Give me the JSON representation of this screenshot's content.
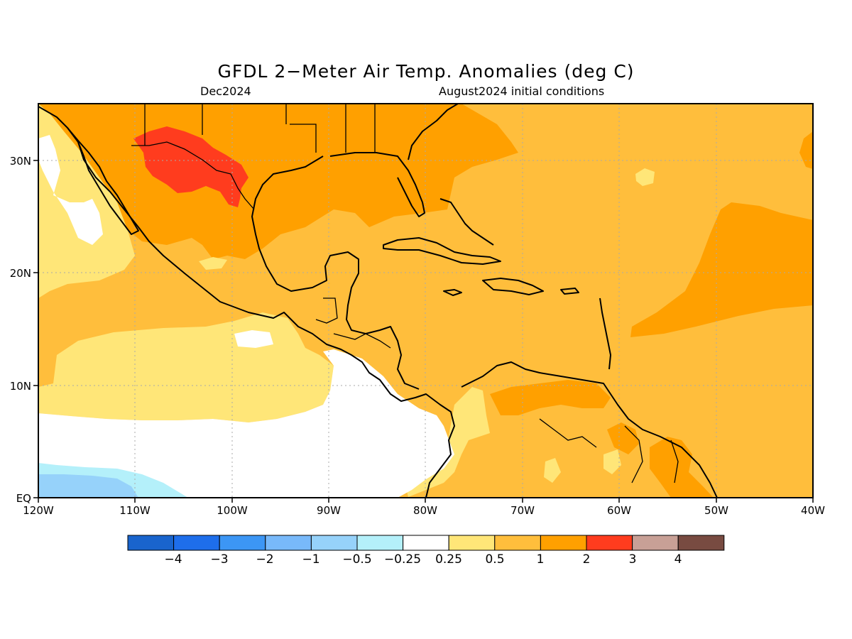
{
  "title": "GFDL 2−Meter Air Temp. Anomalies (deg C)",
  "subtitle_left": "Dec2024",
  "subtitle_right": "August2024 initial conditions",
  "lat_ticks": [
    {
      "id": "30n",
      "label": "30N"
    },
    {
      "id": "20n",
      "label": "20N"
    },
    {
      "id": "10n",
      "label": "10N"
    },
    {
      "id": "eq",
      "label": "EQ"
    }
  ],
  "lon_ticks": [
    {
      "id": "120w",
      "label": "120W"
    },
    {
      "id": "110w",
      "label": "110W"
    },
    {
      "id": "100w",
      "label": "100W"
    },
    {
      "id": "90w",
      "label": "90W"
    },
    {
      "id": "80w",
      "label": "80W"
    },
    {
      "id": "70w",
      "label": "70W"
    },
    {
      "id": "60w",
      "label": "60W"
    },
    {
      "id": "50w",
      "label": "50W"
    },
    {
      "id": "40w",
      "label": "40W"
    }
  ],
  "colorbar": {
    "colors": [
      "#1964cd",
      "#1e6eeb",
      "#3c96f5",
      "#78b9fa",
      "#96d2fa",
      "#b4f0fa",
      "#ffffff",
      "#ffe678",
      "#ffbe3c",
      "#ffa000",
      "#ff3c1e",
      "#c8a096",
      "#784b41"
    ],
    "labels": [
      "−4",
      "−3",
      "−2",
      "−1",
      "−0.5",
      "−0.25",
      "0.25",
      "0.5",
      "1",
      "2",
      "3",
      "4"
    ]
  }
}
